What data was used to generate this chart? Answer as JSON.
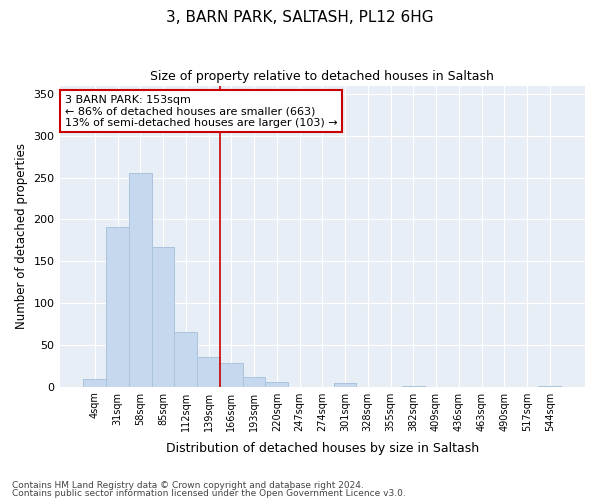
{
  "title": "3, BARN PARK, SALTASH, PL12 6HG",
  "subtitle": "Size of property relative to detached houses in Saltash",
  "xlabel": "Distribution of detached houses by size in Saltash",
  "ylabel": "Number of detached properties",
  "bar_labels": [
    "4sqm",
    "31sqm",
    "58sqm",
    "85sqm",
    "112sqm",
    "139sqm",
    "166sqm",
    "193sqm",
    "220sqm",
    "247sqm",
    "274sqm",
    "301sqm",
    "328sqm",
    "355sqm",
    "382sqm",
    "409sqm",
    "436sqm",
    "463sqm",
    "490sqm",
    "517sqm",
    "544sqm"
  ],
  "bar_values": [
    9,
    191,
    255,
    167,
    65,
    36,
    28,
    11,
    5,
    0,
    0,
    4,
    0,
    0,
    1,
    0,
    0,
    0,
    0,
    0,
    1
  ],
  "bar_color": "#c5d8ed",
  "bar_edgecolor": "#aac4de",
  "fig_bg_color": "#ffffff",
  "plot_bg_color": "#e8eef5",
  "grid_color": "#ffffff",
  "vline_x": 5.5,
  "vline_color": "#cc0000",
  "annotation_title": "3 BARN PARK: 153sqm",
  "annotation_line1": "← 86% of detached houses are smaller (663)",
  "annotation_line2": "13% of semi-detached houses are larger (103) →",
  "annotation_box_color": "white",
  "annotation_box_edgecolor": "#cc0000",
  "ylim": [
    0,
    360
  ],
  "yticks": [
    0,
    50,
    100,
    150,
    200,
    250,
    300,
    350
  ],
  "footnote1": "Contains HM Land Registry data © Crown copyright and database right 2024.",
  "footnote2": "Contains public sector information licensed under the Open Government Licence v3.0."
}
